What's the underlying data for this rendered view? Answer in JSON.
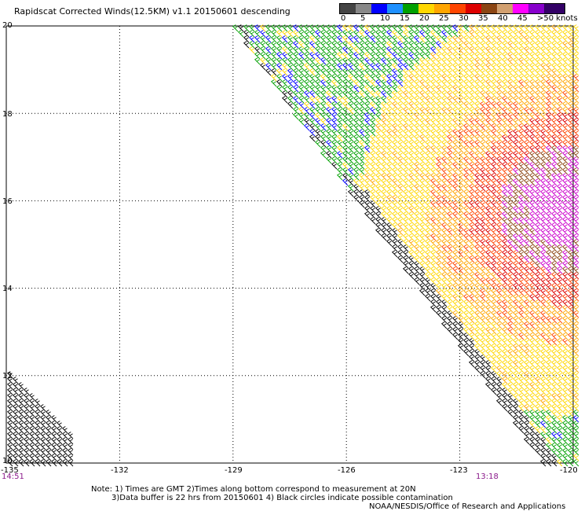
{
  "title": "Rapidscat Corrected Winds(12.5KM) v1.1 20150601 descending",
  "legend": {
    "colors": [
      "#444444",
      "#888888",
      "#0000ff",
      "#1e90ff",
      "#00a000",
      "#ffd700",
      "#ffa500",
      "#ff4500",
      "#dd0000",
      "#8b4513",
      "#d2a070",
      "#ff00ff",
      "#8800cc",
      "#330066"
    ],
    "labels": [
      "0",
      "5",
      "10",
      "15",
      "20",
      "25",
      "30",
      "35",
      "40",
      "45",
      ">50 knots"
    ]
  },
  "axes": {
    "y_labels": [
      "20",
      "18",
      "16",
      "14",
      "12",
      "10"
    ],
    "x_labels": [
      "-135",
      "-132",
      "-129",
      "-126",
      "-123",
      "-120"
    ]
  },
  "times": {
    "left": "14:51",
    "right": "13:18"
  },
  "notes": {
    "line1": "Note: 1) Times are GMT 2)Times along bottom correspond to measurement at 20N",
    "line2": "3)Data buffer is 22 hrs from 20150601 4) Black circles indicate possible contamination"
  },
  "credit": "NOAA/NESDIS/Office of Research and Applications",
  "map": {
    "lat_range": [
      10,
      20
    ],
    "lon_range": [
      -135,
      -120
    ],
    "cyclone_center": {
      "lat": 15.8,
      "lon": -120.3
    }
  }
}
